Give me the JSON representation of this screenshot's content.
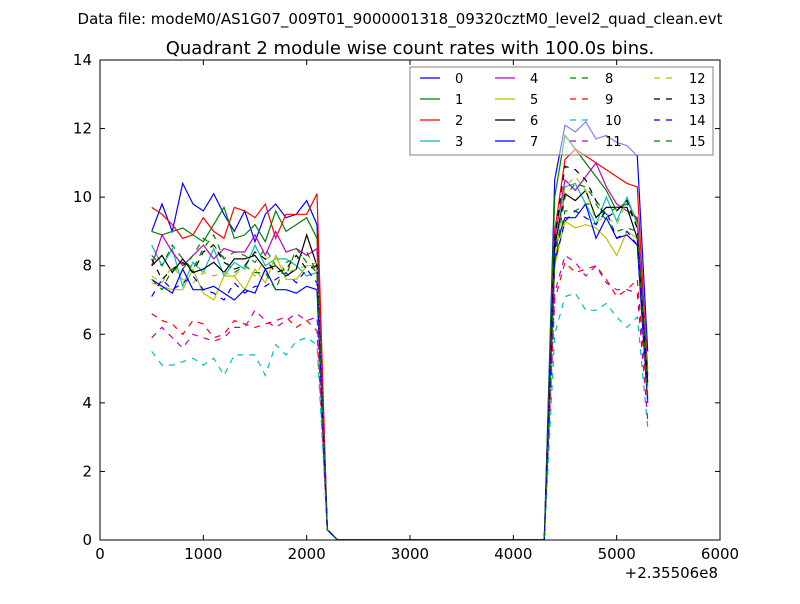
{
  "suptitle": "Data file: modeM0/AS1G07_009T01_9000001318_09320cztM0_level2_quad_clean.evt",
  "chart_data": {
    "type": "line",
    "title": "Quadrant 2 module wise count rates with 100.0s bins.",
    "xlabel": "",
    "ylabel": "",
    "x_offset_label": "+2.35506e8",
    "xlim": [
      0,
      6000
    ],
    "ylim": [
      0,
      14
    ],
    "xticks": [
      0,
      1000,
      2000,
      3000,
      4000,
      5000,
      6000
    ],
    "yticks": [
      0,
      2,
      4,
      6,
      8,
      10,
      12,
      14
    ],
    "grid": false,
    "legend": {
      "placement": "top-right",
      "columns": 4
    },
    "x": [
      500,
      600,
      700,
      800,
      900,
      1000,
      1100,
      1200,
      1300,
      1400,
      1500,
      1600,
      1700,
      1800,
      1900,
      2000,
      2100,
      2200,
      2300,
      2400,
      2500,
      2600,
      2700,
      2800,
      2900,
      3000,
      3100,
      3200,
      3300,
      3400,
      3500,
      3600,
      3700,
      3800,
      3900,
      4000,
      4100,
      4200,
      4300,
      4400,
      4500,
      4600,
      4700,
      4800,
      4900,
      5000,
      5100,
      5200,
      5300
    ],
    "series": [
      {
        "name": "0",
        "color": "#0000ff",
        "style": "solid",
        "values": [
          9.0,
          9.8,
          9.0,
          10.4,
          9.8,
          9.6,
          10.1,
          9.5,
          9.0,
          9.6,
          8.7,
          9.5,
          9.8,
          9.4,
          9.5,
          9.9,
          9.2,
          0.3,
          0,
          0,
          0,
          0,
          0,
          0,
          0,
          0,
          0,
          0,
          0,
          0,
          0,
          0,
          0,
          0,
          0,
          0,
          0,
          0,
          0,
          10.5,
          12.1,
          11.9,
          12.2,
          11.7,
          11.8,
          11.6,
          11.5,
          11.2,
          5.5
        ]
      },
      {
        "name": "1",
        "color": "#008000",
        "style": "solid",
        "values": [
          9.0,
          8.9,
          9.0,
          9.1,
          8.9,
          8.7,
          9.2,
          9.7,
          8.8,
          8.9,
          9.2,
          8.7,
          9.6,
          9.0,
          9.2,
          9.4,
          8.8,
          0.3,
          0,
          0,
          0,
          0,
          0,
          0,
          0,
          0,
          0,
          0,
          0,
          0,
          0,
          0,
          0,
          0,
          0,
          0,
          0,
          0,
          0,
          10.0,
          11.8,
          11.4,
          11.0,
          10.6,
          10.2,
          9.6,
          9.9,
          9.3,
          5.0
        ]
      },
      {
        "name": "2",
        "color": "#ff0000",
        "style": "solid",
        "values": [
          9.7,
          9.5,
          9.2,
          8.8,
          8.9,
          9.4,
          9.0,
          8.8,
          9.7,
          9.6,
          9.4,
          9.8,
          8.8,
          9.5,
          9.5,
          9.5,
          10.1,
          0.3,
          0,
          0,
          0,
          0,
          0,
          0,
          0,
          0,
          0,
          0,
          0,
          0,
          0,
          0,
          0,
          0,
          0,
          0,
          0,
          0,
          0,
          9.0,
          11.1,
          11.4,
          11.2,
          11.0,
          10.8,
          10.6,
          10.4,
          10.3,
          4.8
        ]
      },
      {
        "name": "3",
        "color": "#00bfbf",
        "style": "solid",
        "values": [
          8.6,
          8.0,
          8.5,
          7.4,
          8.1,
          7.8,
          8.5,
          7.7,
          8.1,
          7.9,
          8.6,
          8.0,
          8.2,
          8.2,
          8.0,
          7.7,
          7.8,
          0.3,
          0,
          0,
          0,
          0,
          0,
          0,
          0,
          0,
          0,
          0,
          0,
          0,
          0,
          0,
          0,
          0,
          0,
          0,
          0,
          0,
          0,
          8.5,
          10.3,
          10.4,
          9.8,
          9.2,
          10.0,
          9.3,
          10.0,
          9.2,
          4.5
        ]
      },
      {
        "name": "4",
        "color": "#bf00bf",
        "style": "solid",
        "values": [
          8.0,
          8.9,
          8.4,
          8.0,
          8.3,
          8.6,
          8.2,
          8.5,
          8.4,
          8.4,
          8.9,
          8.3,
          9.0,
          8.4,
          8.5,
          8.3,
          8.5,
          0.3,
          0,
          0,
          0,
          0,
          0,
          0,
          0,
          0,
          0,
          0,
          0,
          0,
          0,
          0,
          0,
          0,
          0,
          0,
          0,
          0,
          0,
          8.8,
          10.5,
          10.2,
          10.6,
          11.0,
          10.3,
          9.8,
          9.6,
          9.4,
          4.8
        ]
      },
      {
        "name": "5",
        "color": "#bfbf00",
        "style": "solid",
        "values": [
          7.5,
          7.4,
          7.3,
          7.3,
          7.9,
          7.2,
          7.0,
          7.7,
          7.7,
          7.3,
          7.9,
          7.5,
          8.3,
          7.6,
          7.6,
          8.0,
          8.0,
          0.3,
          0,
          0,
          0,
          0,
          0,
          0,
          0,
          0,
          0,
          0,
          0,
          0,
          0,
          0,
          0,
          0,
          0,
          0,
          0,
          0,
          0,
          8.0,
          9.3,
          9.1,
          9.2,
          9.1,
          8.8,
          8.3,
          9.0,
          8.8,
          4.6
        ]
      },
      {
        "name": "6",
        "color": "#000000",
        "style": "solid",
        "values": [
          8.0,
          8.3,
          7.8,
          8.2,
          7.8,
          7.9,
          8.1,
          7.8,
          8.2,
          8.2,
          8.3,
          7.9,
          8.0,
          7.7,
          7.9,
          8.9,
          8.0,
          0.3,
          0,
          0,
          0,
          0,
          0,
          0,
          0,
          0,
          0,
          0,
          0,
          0,
          0,
          0,
          0,
          0,
          0,
          0,
          0,
          0,
          0,
          8.6,
          10.1,
          9.9,
          10.2,
          9.4,
          9.7,
          9.7,
          9.7,
          8.8,
          4.6
        ]
      },
      {
        "name": "7",
        "color": "#0000ff",
        "style": "solid",
        "values": [
          7.6,
          7.4,
          7.2,
          7.9,
          7.3,
          7.3,
          7.4,
          7.2,
          7.0,
          7.3,
          7.2,
          7.9,
          7.3,
          7.3,
          7.2,
          7.4,
          7.3,
          0.3,
          0,
          0,
          0,
          0,
          0,
          0,
          0,
          0,
          0,
          0,
          0,
          0,
          0,
          0,
          0,
          0,
          0,
          0,
          0,
          0,
          0,
          8.5,
          9.4,
          9.4,
          9.8,
          8.8,
          9.4,
          8.8,
          8.9,
          8.6,
          4.0
        ]
      },
      {
        "name": "8",
        "color": "#008000",
        "style": "dashed",
        "values": [
          8.3,
          8.0,
          8.6,
          8.2,
          7.9,
          8.5,
          8.9,
          8.2,
          8.4,
          8.3,
          8.1,
          8.5,
          8.0,
          7.7,
          8.5,
          8.1,
          7.8,
          0.3,
          0,
          0,
          0,
          0,
          0,
          0,
          0,
          0,
          0,
          0,
          0,
          0,
          0,
          0,
          0,
          0,
          0,
          0,
          0,
          0,
          0,
          8.2,
          10.0,
          10.4,
          10.3,
          9.9,
          9.5,
          9.7,
          9.8,
          9.1,
          4.9
        ]
      },
      {
        "name": "9",
        "color": "#ff0000",
        "style": "dashed",
        "values": [
          6.6,
          6.4,
          6.3,
          6.0,
          6.4,
          6.3,
          5.9,
          6.0,
          6.4,
          6.3,
          6.2,
          6.3,
          6.4,
          6.5,
          6.2,
          6.4,
          6.1,
          0.3,
          0,
          0,
          0,
          0,
          0,
          0,
          0,
          0,
          0,
          0,
          0,
          0,
          0,
          0,
          0,
          0,
          0,
          0,
          0,
          0,
          0,
          7.0,
          8.1,
          7.8,
          7.9,
          8.0,
          7.6,
          7.1,
          7.3,
          7.6,
          4.0
        ]
      },
      {
        "name": "10",
        "color": "#00bfbf",
        "style": "dashed",
        "values": [
          5.5,
          5.1,
          5.1,
          5.2,
          5.3,
          5.1,
          5.3,
          4.8,
          5.4,
          5.4,
          5.4,
          4.8,
          5.7,
          5.4,
          5.8,
          5.9,
          5.7,
          0.3,
          0,
          0,
          0,
          0,
          0,
          0,
          0,
          0,
          0,
          0,
          0,
          0,
          0,
          0,
          0,
          0,
          0,
          0,
          0,
          0,
          0,
          6.0,
          7.1,
          7.2,
          6.7,
          6.7,
          6.9,
          6.5,
          6.2,
          6.5,
          3.3
        ]
      },
      {
        "name": "11",
        "color": "#bf00bf",
        "style": "dashed",
        "values": [
          5.9,
          6.2,
          5.9,
          5.6,
          6.0,
          5.9,
          5.8,
          5.9,
          6.2,
          6.2,
          6.7,
          6.4,
          6.2,
          6.4,
          6.6,
          6.4,
          6.5,
          0.3,
          0,
          0,
          0,
          0,
          0,
          0,
          0,
          0,
          0,
          0,
          0,
          0,
          0,
          0,
          0,
          0,
          0,
          0,
          0,
          0,
          0,
          7.2,
          8.3,
          8.1,
          7.7,
          8.0,
          7.5,
          7.3,
          7.3,
          7.2,
          3.5
        ]
      },
      {
        "name": "12",
        "color": "#bfbf00",
        "style": "dashed",
        "values": [
          7.7,
          7.5,
          8.0,
          7.6,
          7.5,
          7.8,
          7.7,
          7.8,
          7.7,
          8.0,
          7.7,
          8.2,
          8.3,
          7.8,
          7.9,
          8.0,
          8.1,
          0.3,
          0,
          0,
          0,
          0,
          0,
          0,
          0,
          0,
          0,
          0,
          0,
          0,
          0,
          0,
          0,
          0,
          0,
          0,
          0,
          0,
          0,
          8.0,
          10.3,
          10.6,
          10.2,
          9.3,
          9.4,
          9.2,
          9.9,
          9.2,
          4.7
        ]
      },
      {
        "name": "13",
        "color": "#000000",
        "style": "dashed",
        "values": [
          8.2,
          7.6,
          7.9,
          8.1,
          7.8,
          8.4,
          8.6,
          8.1,
          7.9,
          8.0,
          8.4,
          8.2,
          7.8,
          7.9,
          8.3,
          7.9,
          8.0,
          0.3,
          0,
          0,
          0,
          0,
          0,
          0,
          0,
          0,
          0,
          0,
          0,
          0,
          0,
          0,
          0,
          0,
          0,
          0,
          0,
          0,
          0,
          8.8,
          10.9,
          10.8,
          10.5,
          9.9,
          9.4,
          9.6,
          9.9,
          9.1,
          4.5
        ]
      },
      {
        "name": "14",
        "color": "#0000ff",
        "style": "dashed",
        "values": [
          7.1,
          7.6,
          7.3,
          7.5,
          7.7,
          7.3,
          7.2,
          7.0,
          7.5,
          7.2,
          7.4,
          7.4,
          7.6,
          7.8,
          7.5,
          7.9,
          7.5,
          0.3,
          0,
          0,
          0,
          0,
          0,
          0,
          0,
          0,
          0,
          0,
          0,
          0,
          0,
          0,
          0,
          0,
          0,
          0,
          0,
          0,
          0,
          8.1,
          9.3,
          9.6,
          9.4,
          9.2,
          9.6,
          8.8,
          9.0,
          8.6,
          4.1
        ]
      },
      {
        "name": "15",
        "color": "#008000",
        "style": "dashed",
        "values": [
          7.6,
          7.3,
          7.9,
          7.9,
          8.3,
          8.8,
          8.6,
          8.2,
          7.8,
          8.0,
          7.8,
          7.8,
          7.3,
          8.1,
          8.2,
          8.4,
          7.8,
          0.3,
          0,
          0,
          0,
          0,
          0,
          0,
          0,
          0,
          0,
          0,
          0,
          0,
          0,
          0,
          0,
          0,
          0,
          0,
          0,
          0,
          0,
          8.1,
          9.6,
          9.6,
          9.8,
          9.8,
          9.3,
          9.0,
          9.1,
          9.0,
          4.2
        ]
      }
    ]
  }
}
